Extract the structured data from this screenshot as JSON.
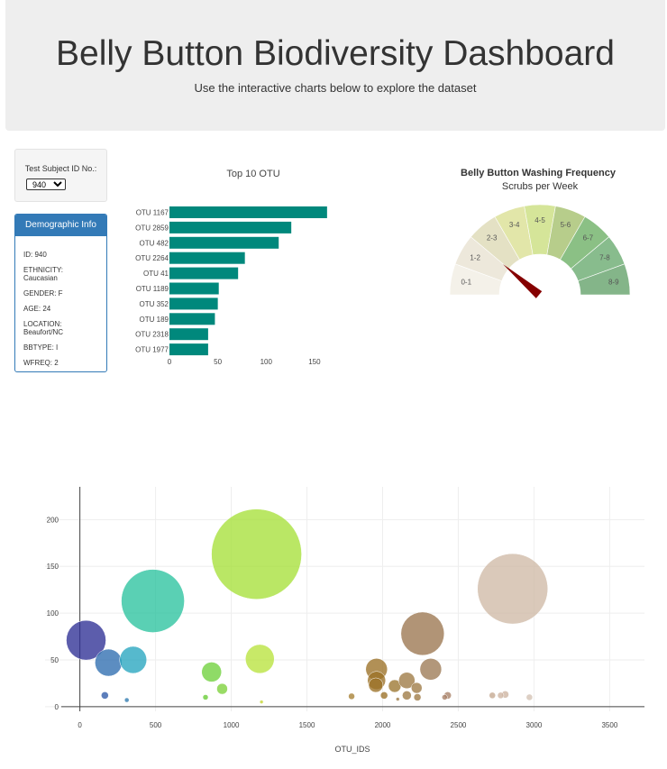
{
  "header": {
    "title": "Belly Button Biodiversity Dashboard",
    "subtitle": "Use the interactive charts below to explore the dataset"
  },
  "selector": {
    "label": "Test Subject ID No.:",
    "selected": "940"
  },
  "demographics": {
    "title": "Demographic Info",
    "lines": [
      "ID: 940",
      "ETHNICITY: Caucasian",
      "GENDER: F",
      "AGE: 24",
      "LOCATION: Beaufort/NC",
      "BBTYPE: I",
      "WFREQ: 2"
    ]
  },
  "chart_data": [
    {
      "type": "bar",
      "orientation": "horizontal",
      "title": "Top 10 OTU",
      "categories": [
        "OTU 1167",
        "OTU 2859",
        "OTU 482",
        "OTU 2264",
        "OTU 41",
        "OTU 1189",
        "OTU 352",
        "OTU 189",
        "OTU 2318",
        "OTU 1977"
      ],
      "values": [
        163,
        126,
        113,
        78,
        71,
        51,
        50,
        47,
        40,
        40
      ],
      "xlim": [
        0,
        165
      ],
      "xticks": [
        0,
        50,
        100,
        150
      ],
      "color": "#00887c"
    },
    {
      "type": "gauge",
      "title": "Belly Button Washing Frequency",
      "subtitle": "Scrubs per Week",
      "segments": [
        "0-1",
        "1-2",
        "2-3",
        "3-4",
        "4-5",
        "5-6",
        "6-7",
        "7-8",
        "8-9"
      ],
      "segment_colors": [
        "#f4f1e9",
        "#ede8db",
        "#e4e1c4",
        "#e2e6a9",
        "#d5e599",
        "#b7cd8b",
        "#8bc085",
        "#88bc8d",
        "#84b589"
      ],
      "value": 2,
      "needle_color": "#850000"
    },
    {
      "type": "scatter",
      "subtype": "bubble",
      "xlabel": "OTU_IDS",
      "xlim": [
        -230,
        3730
      ],
      "ylim": [
        -5,
        235
      ],
      "xticks": [
        0,
        500,
        1000,
        1500,
        2000,
        2500,
        3000,
        3500
      ],
      "yticks": [
        0,
        50,
        100,
        150,
        200
      ],
      "points": [
        {
          "x": 41,
          "y": 71,
          "r": 22,
          "color": "#2e2f95"
        },
        {
          "x": 189,
          "y": 47,
          "r": 15,
          "color": "#2e6db0"
        },
        {
          "x": 352,
          "y": 50,
          "r": 15,
          "color": "#26a5bf"
        },
        {
          "x": 482,
          "y": 113,
          "r": 35,
          "color": "#2cc39f"
        },
        {
          "x": 1167,
          "y": 163,
          "r": 50,
          "color": "#a6e03a"
        },
        {
          "x": 1189,
          "y": 51,
          "r": 16,
          "color": "#b8e33e"
        },
        {
          "x": 870,
          "y": 37,
          "r": 11,
          "color": "#6fd13c"
        },
        {
          "x": 940,
          "y": 19,
          "r": 6,
          "color": "#7cd13a"
        },
        {
          "x": 165,
          "y": 12,
          "r": 4,
          "color": "#2e5aa8"
        },
        {
          "x": 310,
          "y": 7,
          "r": 2.5,
          "color": "#2e7ab0"
        },
        {
          "x": 830,
          "y": 10,
          "r": 3,
          "color": "#66cc33"
        },
        {
          "x": 1200,
          "y": 5,
          "r": 2,
          "color": "#c4d630"
        },
        {
          "x": 1795,
          "y": 11,
          "r": 3.5,
          "color": "#a68033"
        },
        {
          "x": 1960,
          "y": 40,
          "r": 12,
          "color": "#9b7126"
        },
        {
          "x": 1960,
          "y": 28,
          "r": 10,
          "color": "#9b7126"
        },
        {
          "x": 1955,
          "y": 23,
          "r": 8,
          "color": "#9b7126"
        },
        {
          "x": 2010,
          "y": 12,
          "r": 4,
          "color": "#9b7126"
        },
        {
          "x": 2080,
          "y": 22,
          "r": 7,
          "color": "#9b7630"
        },
        {
          "x": 2160,
          "y": 28,
          "r": 9,
          "color": "#9e7a44"
        },
        {
          "x": 2160,
          "y": 12,
          "r": 5,
          "color": "#9e7a44"
        },
        {
          "x": 2100,
          "y": 8,
          "r": 2,
          "color": "#9e7a44"
        },
        {
          "x": 2225,
          "y": 20,
          "r": 6,
          "color": "#9e7a44"
        },
        {
          "x": 2230,
          "y": 10,
          "r": 4,
          "color": "#9e7a44"
        },
        {
          "x": 2264,
          "y": 78,
          "r": 24,
          "color": "#9b7650"
        },
        {
          "x": 2318,
          "y": 40,
          "r": 12,
          "color": "#9c7a55"
        },
        {
          "x": 2430,
          "y": 12,
          "r": 4,
          "color": "#a88066"
        },
        {
          "x": 2410,
          "y": 10,
          "r": 3,
          "color": "#a88066"
        },
        {
          "x": 2859,
          "y": 126,
          "r": 39,
          "color": "#cfbaa6"
        },
        {
          "x": 2725,
          "y": 12,
          "r": 3.5,
          "color": "#c4a88f"
        },
        {
          "x": 2810,
          "y": 13,
          "r": 4,
          "color": "#cdb3a0"
        },
        {
          "x": 2780,
          "y": 12,
          "r": 3.5,
          "color": "#cdb3a0"
        },
        {
          "x": 2970,
          "y": 10,
          "r": 3.5,
          "color": "#d4c2b3"
        }
      ]
    }
  ]
}
